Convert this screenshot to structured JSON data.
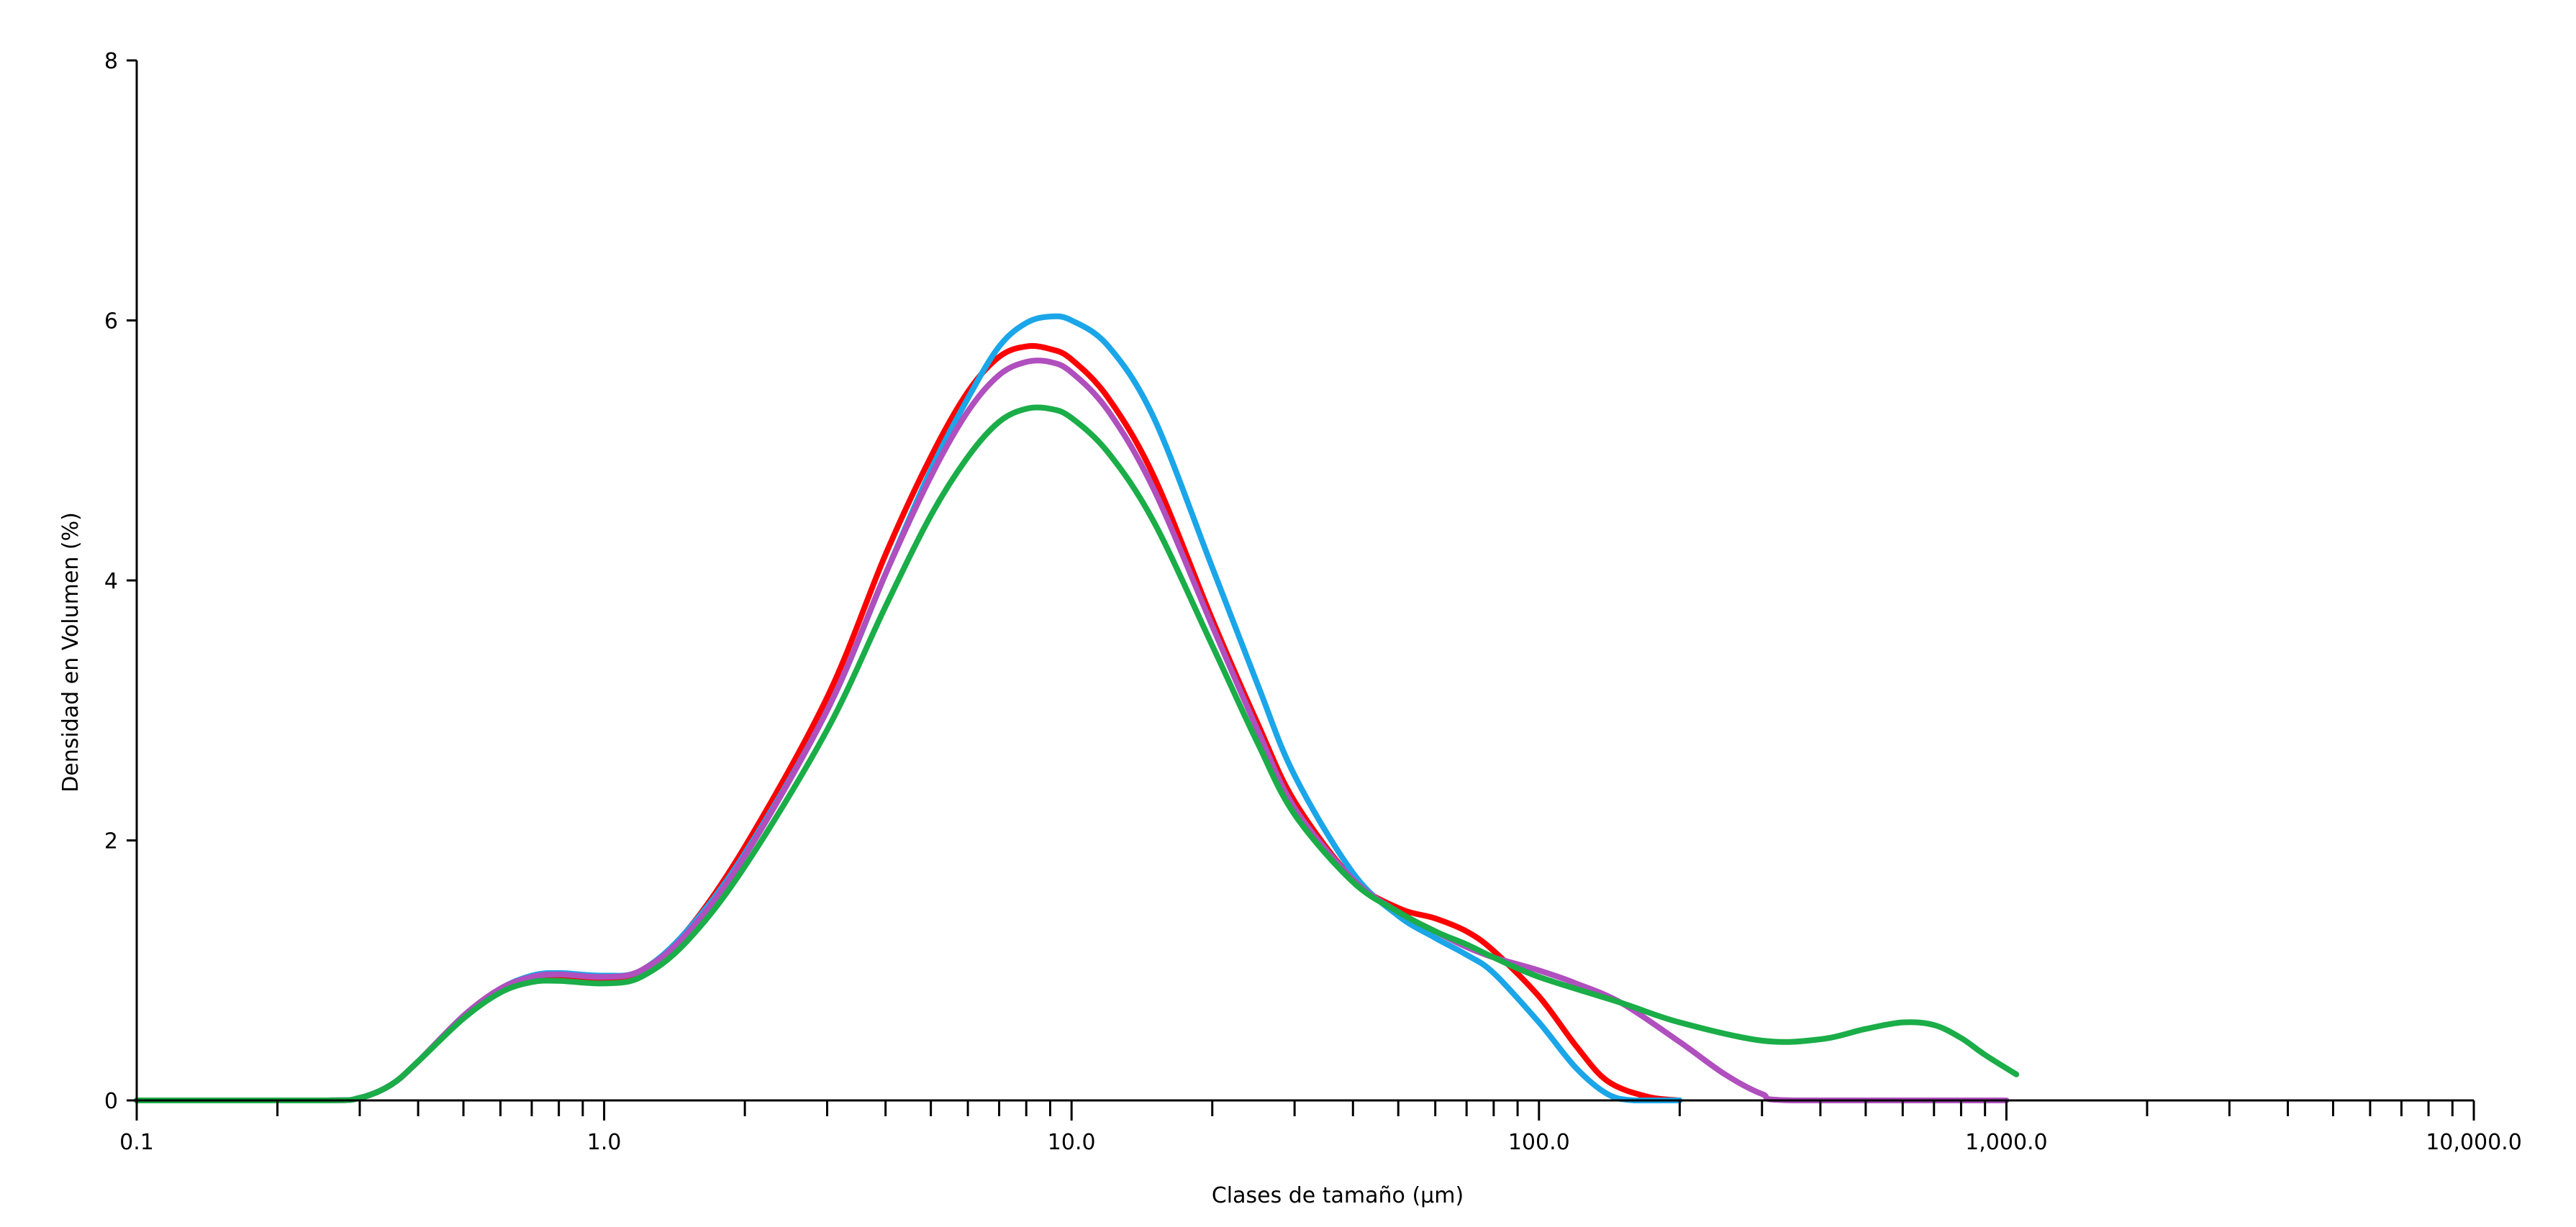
{
  "chart_data": {
    "type": "line",
    "title": "",
    "xlabel": "Clases de tamaño (µm)",
    "ylabel": "Densidad en Volumen (%)",
    "xscale": "log",
    "xlim": [
      0.1,
      10000
    ],
    "ylim": [
      0,
      8
    ],
    "grid": false,
    "legend": "none",
    "x_tick_labels": [
      {
        "value": 0.1,
        "label": "0.1"
      },
      {
        "value": 1,
        "label": "1.0"
      },
      {
        "value": 10,
        "label": "10.0"
      },
      {
        "value": 100,
        "label": "100.0"
      },
      {
        "value": 1000,
        "label": "1,000.0"
      },
      {
        "value": 10000,
        "label": "10,000.0"
      }
    ],
    "y_tick_labels": [
      {
        "value": 0,
        "label": "0"
      },
      {
        "value": 2,
        "label": "2"
      },
      {
        "value": 4,
        "label": "4"
      },
      {
        "value": 6,
        "label": "6"
      },
      {
        "value": 8,
        "label": "8"
      }
    ],
    "series": [
      {
        "color": "#ff0000",
        "points": [
          [
            0.1,
            0
          ],
          [
            0.25,
            0
          ],
          [
            0.3,
            0.02
          ],
          [
            0.35,
            0.12
          ],
          [
            0.4,
            0.3
          ],
          [
            0.5,
            0.65
          ],
          [
            0.6,
            0.86
          ],
          [
            0.7,
            0.95
          ],
          [
            0.8,
            0.96
          ],
          [
            1.0,
            0.94
          ],
          [
            1.2,
            1.0
          ],
          [
            1.5,
            1.3
          ],
          [
            2,
            1.95
          ],
          [
            3,
            3.1
          ],
          [
            4,
            4.2
          ],
          [
            5,
            4.95
          ],
          [
            6,
            5.45
          ],
          [
            7,
            5.72
          ],
          [
            8,
            5.8
          ],
          [
            9,
            5.78
          ],
          [
            10,
            5.7
          ],
          [
            12,
            5.4
          ],
          [
            15,
            4.8
          ],
          [
            20,
            3.7
          ],
          [
            25,
            2.9
          ],
          [
            30,
            2.3
          ],
          [
            40,
            1.7
          ],
          [
            50,
            1.48
          ],
          [
            60,
            1.4
          ],
          [
            70,
            1.3
          ],
          [
            80,
            1.15
          ],
          [
            100,
            0.8
          ],
          [
            120,
            0.42
          ],
          [
            140,
            0.15
          ],
          [
            170,
            0.03
          ],
          [
            200,
            0
          ]
        ]
      },
      {
        "color": "#1aa6e8",
        "points": [
          [
            0.1,
            0
          ],
          [
            0.25,
            0
          ],
          [
            0.3,
            0.02
          ],
          [
            0.35,
            0.12
          ],
          [
            0.4,
            0.3
          ],
          [
            0.5,
            0.65
          ],
          [
            0.6,
            0.86
          ],
          [
            0.7,
            0.96
          ],
          [
            0.8,
            0.98
          ],
          [
            1.0,
            0.96
          ],
          [
            1.2,
            1.0
          ],
          [
            1.5,
            1.3
          ],
          [
            2,
            1.9
          ],
          [
            3,
            3.0
          ],
          [
            4,
            4.05
          ],
          [
            5,
            4.85
          ],
          [
            6,
            5.4
          ],
          [
            7,
            5.8
          ],
          [
            8,
            5.98
          ],
          [
            9,
            6.03
          ],
          [
            10,
            6.0
          ],
          [
            12,
            5.8
          ],
          [
            15,
            5.25
          ],
          [
            20,
            4.1
          ],
          [
            25,
            3.2
          ],
          [
            30,
            2.5
          ],
          [
            40,
            1.75
          ],
          [
            50,
            1.42
          ],
          [
            60,
            1.25
          ],
          [
            70,
            1.12
          ],
          [
            80,
            0.98
          ],
          [
            100,
            0.6
          ],
          [
            120,
            0.25
          ],
          [
            140,
            0.05
          ],
          [
            160,
            0
          ],
          [
            200,
            0
          ]
        ]
      },
      {
        "color": "#b04fbe",
        "points": [
          [
            0.1,
            0
          ],
          [
            0.25,
            0
          ],
          [
            0.3,
            0.02
          ],
          [
            0.35,
            0.12
          ],
          [
            0.4,
            0.3
          ],
          [
            0.5,
            0.65
          ],
          [
            0.6,
            0.86
          ],
          [
            0.7,
            0.95
          ],
          [
            0.8,
            0.97
          ],
          [
            1.0,
            0.95
          ],
          [
            1.2,
            1.0
          ],
          [
            1.5,
            1.28
          ],
          [
            2,
            1.88
          ],
          [
            3,
            3.0
          ],
          [
            4,
            4.05
          ],
          [
            5,
            4.8
          ],
          [
            6,
            5.3
          ],
          [
            7,
            5.58
          ],
          [
            8,
            5.68
          ],
          [
            9,
            5.68
          ],
          [
            10,
            5.6
          ],
          [
            12,
            5.3
          ],
          [
            15,
            4.7
          ],
          [
            20,
            3.65
          ],
          [
            25,
            2.85
          ],
          [
            30,
            2.25
          ],
          [
            40,
            1.7
          ],
          [
            50,
            1.45
          ],
          [
            60,
            1.3
          ],
          [
            70,
            1.18
          ],
          [
            80,
            1.1
          ],
          [
            100,
            1.0
          ],
          [
            120,
            0.9
          ],
          [
            150,
            0.75
          ],
          [
            200,
            0.45
          ],
          [
            250,
            0.2
          ],
          [
            300,
            0.05
          ],
          [
            350,
            0
          ],
          [
            1000,
            0
          ]
        ]
      },
      {
        "color": "#1aad48",
        "points": [
          [
            0.1,
            0
          ],
          [
            0.25,
            0
          ],
          [
            0.3,
            0.02
          ],
          [
            0.35,
            0.12
          ],
          [
            0.4,
            0.3
          ],
          [
            0.5,
            0.63
          ],
          [
            0.6,
            0.83
          ],
          [
            0.7,
            0.91
          ],
          [
            0.8,
            0.92
          ],
          [
            1.0,
            0.9
          ],
          [
            1.2,
            0.95
          ],
          [
            1.5,
            1.22
          ],
          [
            2,
            1.8
          ],
          [
            3,
            2.85
          ],
          [
            4,
            3.8
          ],
          [
            5,
            4.5
          ],
          [
            6,
            4.95
          ],
          [
            7,
            5.22
          ],
          [
            8,
            5.32
          ],
          [
            9,
            5.32
          ],
          [
            10,
            5.25
          ],
          [
            12,
            4.98
          ],
          [
            15,
            4.45
          ],
          [
            20,
            3.5
          ],
          [
            25,
            2.75
          ],
          [
            30,
            2.2
          ],
          [
            40,
            1.68
          ],
          [
            50,
            1.45
          ],
          [
            60,
            1.3
          ],
          [
            70,
            1.2
          ],
          [
            80,
            1.1
          ],
          [
            100,
            0.95
          ],
          [
            150,
            0.75
          ],
          [
            200,
            0.6
          ],
          [
            300,
            0.46
          ],
          [
            400,
            0.47
          ],
          [
            500,
            0.55
          ],
          [
            600,
            0.6
          ],
          [
            700,
            0.58
          ],
          [
            800,
            0.48
          ],
          [
            900,
            0.35
          ],
          [
            1050,
            0.2
          ]
        ]
      }
    ]
  }
}
